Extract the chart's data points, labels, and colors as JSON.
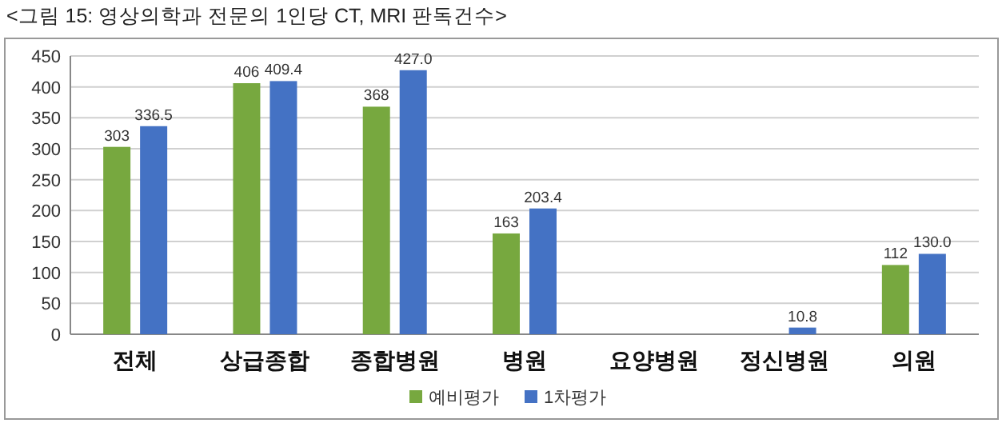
{
  "chart_data": {
    "type": "bar",
    "title": "<그림 15: 영상의학과 전문의 1인당 CT, MRI 판독건수>",
    "categories": [
      "전체",
      "상급종합",
      "종합병원",
      "병원",
      "요양병원",
      "정신병원",
      "의원"
    ],
    "series": [
      {
        "name": "예비평가",
        "color": "#77a83f",
        "values": [
          303,
          406,
          368,
          163,
          null,
          null,
          112
        ],
        "value_labels": [
          "303",
          "406",
          "368",
          "163",
          null,
          null,
          "112"
        ]
      },
      {
        "name": "1차평가",
        "color": "#4472c4",
        "values": [
          336.5,
          409.4,
          427.0,
          203.4,
          null,
          10.8,
          130.0
        ],
        "value_labels": [
          "336.5",
          "409.4",
          "427.0",
          "203.4",
          null,
          "10.8",
          "130.0"
        ]
      }
    ],
    "ylim": [
      0,
      450
    ],
    "yticks": [
      0,
      50,
      100,
      150,
      200,
      250,
      300,
      350,
      400,
      450
    ],
    "grid": "y",
    "legend": "bottom"
  }
}
